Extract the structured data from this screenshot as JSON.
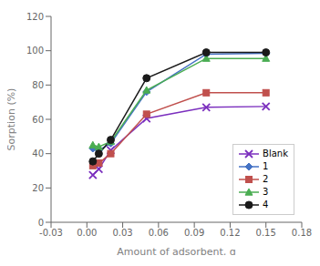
{
  "chart_data": {
    "type": "line",
    "xlabel": "Amount of adsorbent, g",
    "ylabel": "Sorption (%)",
    "x": [
      0.005,
      0.01,
      0.02,
      0.05,
      0.1,
      0.15
    ],
    "series": [
      {
        "name": "Blank",
        "color": "#7b2fbe",
        "marker": "x",
        "values": [
          27.5,
          31.0,
          42.0,
          60.5,
          67.0,
          67.5
        ]
      },
      {
        "name": "1",
        "color": "#4472c4",
        "marker": "diamond",
        "values": [
          43.0,
          42.0,
          46.0,
          76.0,
          98.0,
          98.5
        ]
      },
      {
        "name": "2",
        "color": "#c0504d",
        "marker": "square",
        "values": [
          33.0,
          34.5,
          40.0,
          63.0,
          75.5,
          75.5
        ]
      },
      {
        "name": "3",
        "color": "#4aad52",
        "marker": "triangle",
        "values": [
          45.0,
          44.0,
          47.0,
          77.0,
          95.5,
          95.5
        ]
      },
      {
        "name": "4",
        "color": "#1a1a1a",
        "marker": "circle",
        "values": [
          35.5,
          40.0,
          48.0,
          84.0,
          99.0,
          99.0
        ]
      }
    ],
    "xlim": [
      -0.03,
      0.18
    ],
    "xticks": [
      -0.03,
      {
        "value": 0,
        "label": "0.00"
      },
      0.03,
      0.06,
      0.09,
      0.12,
      0.15,
      0.18
    ],
    "ylim": [
      0,
      120
    ],
    "yticks": [
      0,
      20,
      40,
      60,
      80,
      100,
      120
    ],
    "legend": "lower right",
    "grid": false
  }
}
